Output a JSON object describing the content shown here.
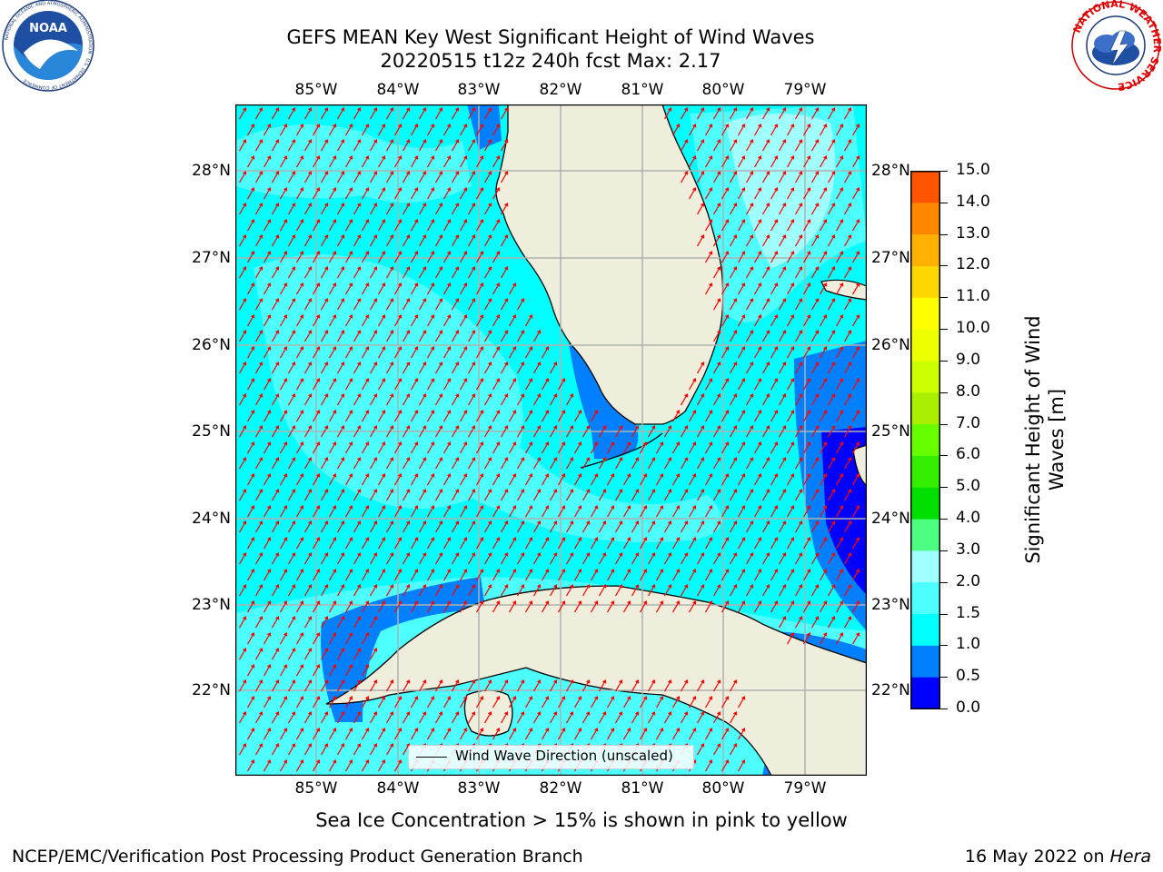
{
  "title": {
    "line1": "GEFS MEAN Key West Significant Height of Wind Waves",
    "line2": "20220515 t12z 240h fcst   Max: 2.17"
  },
  "logos": {
    "left_name": "NOAA",
    "left_ring_text": "NATIONAL OCEANIC AND ATMOSPHERIC ADMINISTRATION · U.S. DEPARTMENT OF COMMERCE",
    "right_ring_text": "NATIONAL WEATHER SERVICE"
  },
  "map": {
    "lon_labels": [
      "85°W",
      "84°W",
      "83°W",
      "82°W",
      "81°W",
      "80°W",
      "79°W"
    ],
    "lat_labels": [
      "28°N",
      "27°N",
      "26°N",
      "25°N",
      "24°N",
      "23°N",
      "22°N"
    ],
    "legend_label": "Wind Wave Direction (unscaled)",
    "colors": {
      "land": "#efeedc",
      "water_0_5": "#0000ff",
      "water_1_0": "#0080ff",
      "water_1_5": "#00ffff",
      "water_2_0": "#4dffff",
      "water_2_5": "#a0ffff",
      "arrow": "#ff0000",
      "grid": "#b0b0b0"
    }
  },
  "colorbar": {
    "title_line1": "Significant Height of Wind",
    "title_line2": "Waves [m]",
    "labels": [
      "15.0",
      "14.0",
      "13.0",
      "12.0",
      "11.0",
      "10.0",
      "9.0",
      "8.0",
      "7.0",
      "6.0",
      "5.0",
      "4.0",
      "3.0",
      "2.0",
      "1.5",
      "1.0",
      "0.5",
      "0.0"
    ],
    "colors": [
      "#0000ff",
      "#0080ff",
      "#00ffff",
      "#4dffff",
      "#a0ffff",
      "#4dff80",
      "#00e000",
      "#33ee00",
      "#66ff00",
      "#aaee00",
      "#ccff00",
      "#eeff00",
      "#ffff00",
      "#ffd700",
      "#ffb000",
      "#ff8800",
      "#ff5500",
      "#ff2a00",
      "#ff0000"
    ]
  },
  "footer": {
    "note": "Sea Ice Concentration > 15% is shown in pink to yellow",
    "org": "NCEP/EMC/Verification Post Processing Product Generation Branch",
    "date": "16 May 2022 on ",
    "machine": "Hera"
  }
}
